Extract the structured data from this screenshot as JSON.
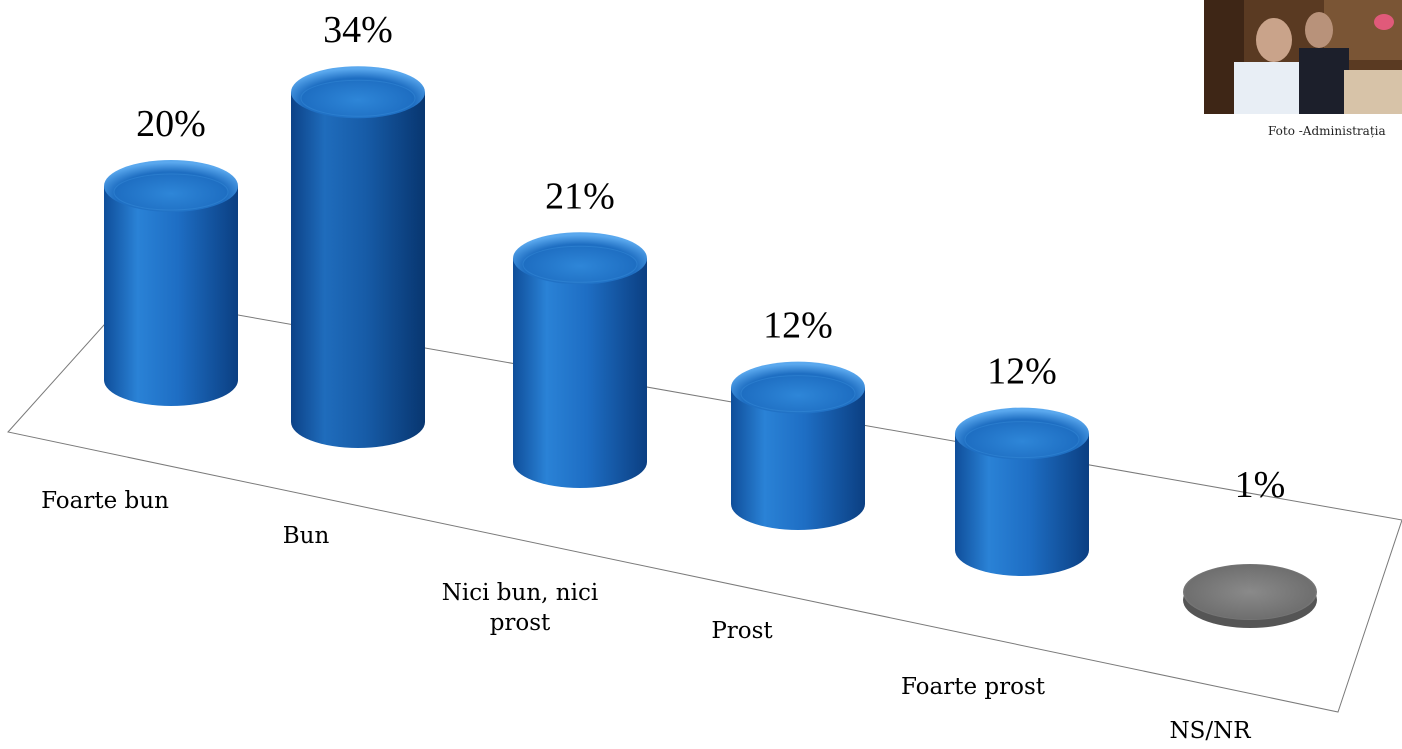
{
  "chart_data": {
    "type": "bar",
    "style": "3d-cylinder",
    "categories": [
      "Foarte bun",
      "Bun",
      "Nici bun, nici prost",
      "Prost",
      "Foarte prost",
      "NS/NR"
    ],
    "category_label_lines": [
      [
        "Foarte bun"
      ],
      [
        "Bun"
      ],
      [
        "Nici bun, nici",
        "prost"
      ],
      [
        "Prost"
      ],
      [
        "Foarte prost"
      ],
      [
        "NS/NR"
      ]
    ],
    "values": [
      20,
      34,
      21,
      12,
      12,
      1
    ],
    "value_labels": [
      "20%",
      "34%",
      "21%",
      "12%",
      "12%",
      "1%"
    ],
    "unit": "%",
    "colors": [
      "#1f6fc4",
      "#1b5fae",
      "#1f6fc4",
      "#1f6fc4",
      "#1f6fc4",
      "#7f7f7f"
    ],
    "grid": false,
    "legend": "none"
  },
  "photo": {
    "caption": "Foto -Administrația"
  }
}
